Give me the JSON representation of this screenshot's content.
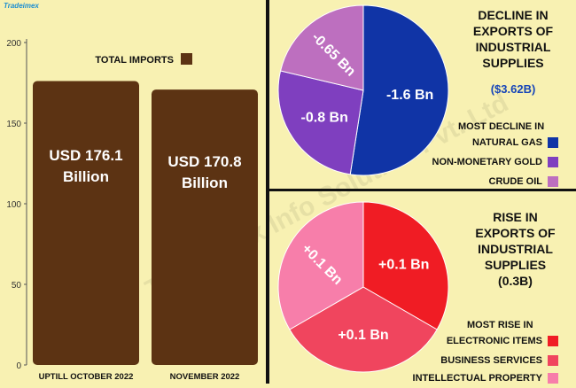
{
  "logo": "Tradeimex",
  "watermark": "Tradeimex Info Solution Pvt. Ltd",
  "left_chart": {
    "legend": "TOTAL IMPORTS",
    "legend_color": "#5c3313",
    "chart_data": {
      "type": "bar",
      "categories": [
        "UPTILL OCTOBER 2022",
        "NOVEMBER 2022"
      ],
      "values": [
        176.1,
        170.8
      ],
      "data_labels": [
        "USD 176.1 Billion",
        "USD 170.8 Billion"
      ],
      "yticks": [
        "0",
        "50",
        "100",
        "150",
        "200"
      ],
      "ylim": [
        0,
        200
      ]
    }
  },
  "decline_panel": {
    "title_lines": [
      "DECLINE IN",
      "EXPORTS OF",
      "INDUSTRIAL",
      "SUPPLIES"
    ],
    "total": "($3.62B)",
    "total_color": "#1746b8",
    "legend_heading": "MOST DECLINE IN",
    "legend": [
      {
        "label": "NATURAL GAS",
        "color": "#1034a6"
      },
      {
        "label": "NON-MONETARY GOLD",
        "color": "#7f3fbf"
      },
      {
        "label": "CRUDE OIL",
        "color": "#bd6fbf"
      }
    ],
    "chart_data": {
      "type": "pie",
      "labels": [
        "NATURAL GAS",
        "NON-MONETARY GOLD",
        "CRUDE OIL"
      ],
      "values": [
        -1.6,
        -0.8,
        -0.65
      ],
      "slice_labels": [
        "-1.6 Bn",
        "-0.8 Bn",
        "-0.65 Bn"
      ],
      "colors": [
        "#1034a6",
        "#7f3fbf",
        "#bd6fbf"
      ]
    }
  },
  "rise_panel": {
    "title_lines": [
      "RISE IN",
      "EXPORTS OF",
      "INDUSTRIAL",
      "SUPPLIES",
      "(0.3B)"
    ],
    "legend_heading": "MOST RISE IN",
    "legend": [
      {
        "label": "ELECTRONIC ITEMS",
        "color": "#f01c24"
      },
      {
        "label": "BUSINESS SERVICES",
        "color": "#f0455e"
      },
      {
        "label": "INTELLECTUAL PROPERTY",
        "color": "#f77eaa"
      }
    ],
    "chart_data": {
      "type": "pie",
      "labels": [
        "ELECTRONIC ITEMS",
        "BUSINESS SERVICES",
        "INTELLECTUAL PROPERTY"
      ],
      "values": [
        0.1,
        0.1,
        0.1
      ],
      "slice_labels": [
        "+0.1 Bn",
        "+0.1 Bn",
        "+0.1 Bn"
      ],
      "colors": [
        "#f01c24",
        "#f0455e",
        "#f77eaa"
      ]
    }
  }
}
